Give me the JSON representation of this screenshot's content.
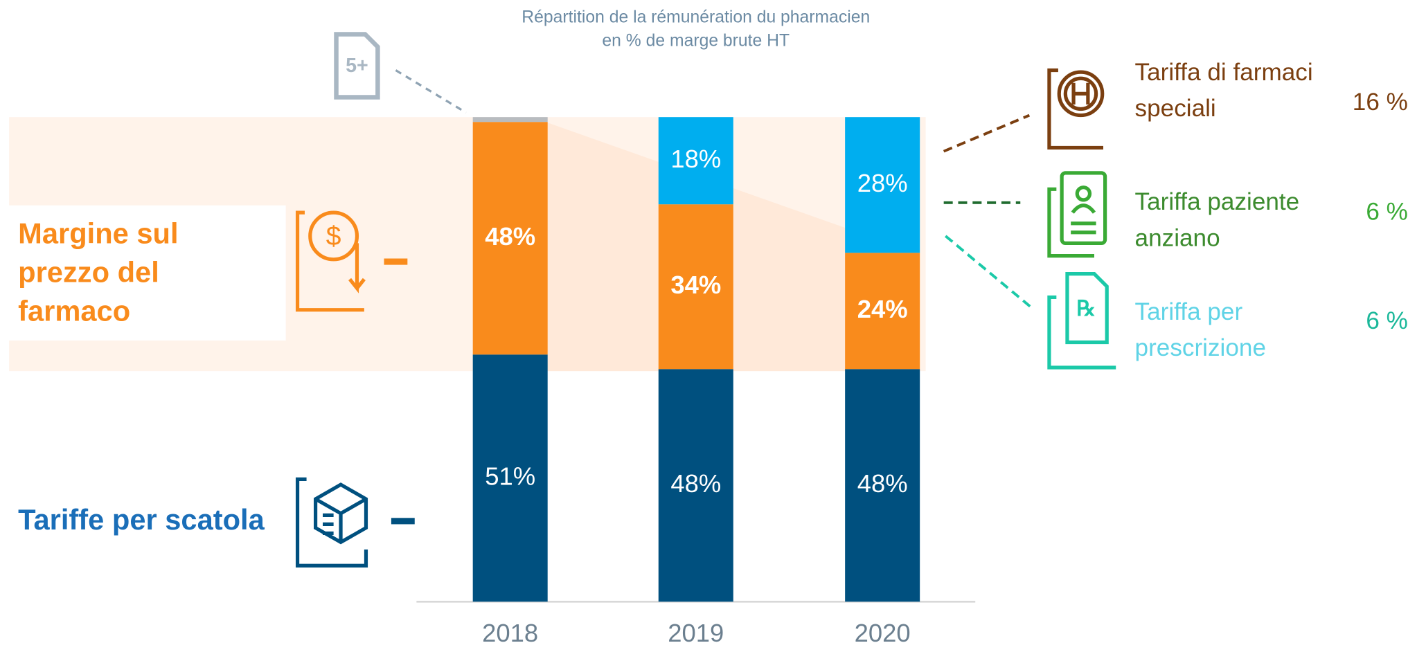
{
  "chart_data": {
    "type": "bar",
    "stacked": true,
    "title": "Répartition de la rémunération du pharmacien",
    "subtitle": "en % de marge brute HT",
    "categories": [
      "2018",
      "2019",
      "2020"
    ],
    "ylim": [
      0,
      100
    ],
    "series": [
      {
        "name": "Tariffe per scatola",
        "color": "#00507f",
        "values": [
          51,
          48,
          48
        ],
        "value_labels": [
          "51%",
          "48%",
          "48%"
        ]
      },
      {
        "name": "Margine sul prezzo del farmaco",
        "color": "#f98b1c",
        "values": [
          48,
          34,
          24
        ],
        "value_labels": [
          "48%",
          "34%",
          "24%"
        ]
      },
      {
        "color": "#00aeef",
        "values": [
          null,
          18,
          28
        ],
        "value_labels": [
          null,
          "18%",
          "28%"
        ]
      },
      {
        "color": "#b8bcc0",
        "values": [
          1,
          null,
          null
        ]
      }
    ],
    "icon_label": "5+",
    "breakdown": [
      {
        "label": "Tariffa di farmaci speciali",
        "value": 16,
        "value_label": "16 %",
        "color": "#7b3f10",
        "value_color": "#7b3f10"
      },
      {
        "label": "Tariffa paziente anziano",
        "value": 6,
        "value_label": "6 %",
        "color": "#3c8b2e",
        "value_color": "#3aaa35"
      },
      {
        "label": "Tariffa per prescrizione",
        "value": 6,
        "value_label": "6 %",
        "color": "#5fd3e6",
        "value_color": "#1bb89a"
      }
    ]
  }
}
